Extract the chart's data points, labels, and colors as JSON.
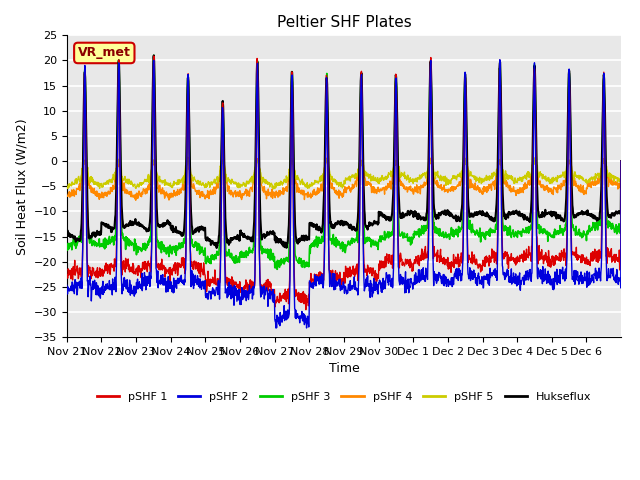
{
  "title": "Peltier SHF Plates",
  "xlabel": "Time",
  "ylabel": "Soil Heat Flux (W/m2)",
  "ylim": [
    -35,
    25
  ],
  "yticks": [
    -35,
    -30,
    -25,
    -20,
    -15,
    -10,
    -5,
    0,
    5,
    10,
    15,
    20,
    25
  ],
  "xtick_labels": [
    "Nov 21",
    "Nov 22",
    "Nov 23",
    "Nov 24",
    "Nov 25",
    "Nov 26",
    "Nov 27",
    "Nov 28",
    "Nov 29",
    "Nov 30",
    "Dec 1",
    "Dec 2",
    "Dec 3",
    "Dec 4",
    "Dec 5",
    "Dec 6"
  ],
  "num_days": 16,
  "colors": {
    "pSHF1": "#dd0000",
    "pSHF2": "#0000dd",
    "pSHF3": "#00cc00",
    "pSHF4": "#ff8800",
    "pSHF5": "#cccc00",
    "Hukseflux": "#000000"
  },
  "legend_labels": [
    "pSHF 1",
    "pSHF 2",
    "pSHF 3",
    "pSHF 4",
    "pSHF 5",
    "Hukseflux"
  ],
  "bg_color": "#e8e8e8",
  "annotation_text": "VR_met",
  "annotation_box_color": "#ffff99",
  "annotation_box_edge": "#cc0000",
  "peak_heights": [
    18,
    20,
    21,
    17,
    12,
    20,
    18,
    17,
    18,
    17,
    20,
    17,
    20,
    19,
    18,
    17
  ],
  "peak_hour_fracs": [
    0.52,
    0.5,
    0.51,
    0.5,
    0.5,
    0.5,
    0.5,
    0.5,
    0.5,
    0.5,
    0.5,
    0.5,
    0.5,
    0.5,
    0.5,
    0.5
  ],
  "trough_huk": [
    -15,
    -13,
    -13,
    -14,
    -16,
    -15,
    -16,
    -13,
    -13,
    -11,
    -11,
    -11,
    -11,
    -11,
    -11,
    -11
  ],
  "trough_p1": [
    -23,
    -22,
    -22,
    -22,
    -25,
    -26,
    -28,
    -24,
    -23,
    -21,
    -20,
    -21,
    -20,
    -20,
    -20,
    -20
  ],
  "trough_p2": [
    -26,
    -26,
    -25,
    -25,
    -27,
    -27,
    -32,
    -25,
    -26,
    -25,
    -24,
    -24,
    -24,
    -24,
    -24,
    -24
  ],
  "trough_p3": [
    -17,
    -17,
    -18,
    -18,
    -20,
    -19,
    -21,
    -17,
    -17,
    -16,
    -15,
    -15,
    -15,
    -15,
    -15,
    -14
  ],
  "trough_p4": [
    -7,
    -7,
    -7,
    -7,
    -7,
    -7,
    -7,
    -7,
    -6,
    -6,
    -6,
    -6,
    -6,
    -6,
    -6,
    -5
  ],
  "trough_p5": [
    -5,
    -5,
    -5,
    -5,
    -5,
    -5,
    -5,
    -5,
    -4,
    -4,
    -4,
    -4,
    -4,
    -4,
    -4,
    -4
  ],
  "rise_sigma": 0.032,
  "noise_scales": [
    0.7,
    0.8,
    0.5,
    0.4,
    0.3,
    0.25
  ]
}
